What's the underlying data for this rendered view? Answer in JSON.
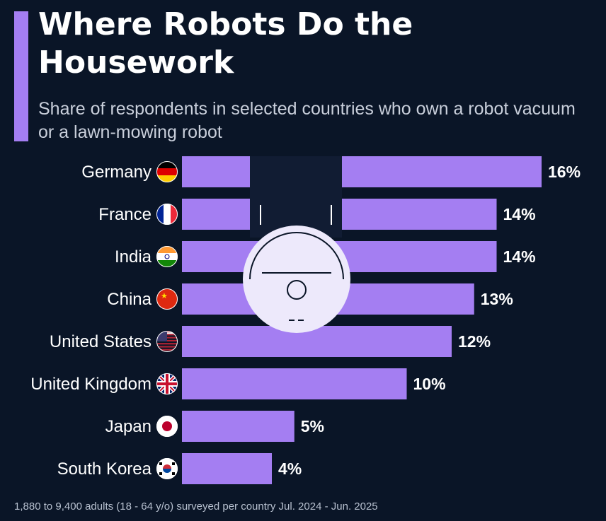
{
  "title": "Where Robots Do the Housework",
  "subtitle": "Share of respondents in selected countries who own a robot vacuum or a lawn-mowing robot",
  "footer": "1,880 to 9,400 adults (18 - 64 y/o) surveyed per country Jul. 2024 - Jun. 2025",
  "colors": {
    "bar": "#a47ef2",
    "background": "#0a1527",
    "accent": "#a47ef2"
  },
  "chart_data": {
    "type": "bar",
    "orientation": "horizontal",
    "categories": [
      "Germany",
      "France",
      "India",
      "China",
      "United States",
      "United Kingdom",
      "Japan",
      "South Korea"
    ],
    "values": [
      16,
      14,
      14,
      13,
      12,
      10,
      5,
      4
    ],
    "data_labels": [
      "16%",
      "14%",
      "14%",
      "13%",
      "12%",
      "10%",
      "5%",
      "4%"
    ],
    "unit": "%",
    "xlim": [
      0,
      16
    ],
    "grid": false,
    "icons": [
      "flag-germany",
      "flag-france",
      "flag-india",
      "flag-china",
      "flag-united-states",
      "flag-united-kingdom",
      "flag-japan",
      "flag-south-korea",
      "robot-vacuum-illustration"
    ]
  }
}
